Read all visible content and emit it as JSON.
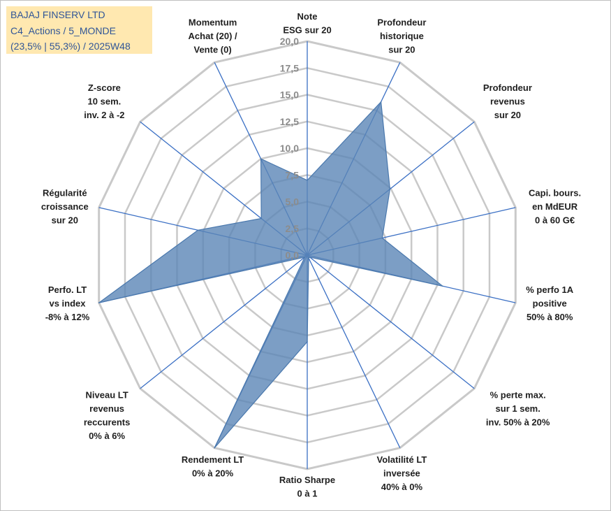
{
  "title_box": {
    "line1": "BAJAJ FINSERV LTD",
    "line2": "C4_Actions / 5_MONDE",
    "line3": "(23,5% | 55,3%) / 2025W48"
  },
  "chart_data": {
    "type": "radar",
    "rmin": 0,
    "rmax": 20,
    "ticks": [
      "0,0",
      "2,5",
      "5,0",
      "7,5",
      "10,0",
      "12,5",
      "15,0",
      "17,5",
      "20,0"
    ],
    "axes": [
      {
        "lines": [
          "Note",
          "ESG sur 20"
        ]
      },
      {
        "lines": [
          "Profondeur",
          "historique",
          "sur 20"
        ]
      },
      {
        "lines": [
          "Profondeur",
          "revenus",
          "sur 20"
        ]
      },
      {
        "lines": [
          "Capi. bours.",
          "en MdEUR",
          "0 à 60 G€"
        ]
      },
      {
        "lines": [
          "% perfo 1A",
          "positive",
          "50% à 80%"
        ]
      },
      {
        "lines": [
          "% perte max.",
          "sur 1 sem.",
          "inv. 50% à 20%"
        ]
      },
      {
        "lines": [
          "Volatilité LT",
          "inversée",
          "40% à 0%"
        ]
      },
      {
        "lines": [
          "Ratio Sharpe",
          "0 à 1"
        ]
      },
      {
        "lines": [
          "Rendement LT",
          "0% à 20%"
        ]
      },
      {
        "lines": [
          "Niveau LT",
          "revenus",
          "reccurents",
          "0% à 6%"
        ]
      },
      {
        "lines": [
          "Perfo. LT",
          "vs index",
          "-8% à 12%"
        ]
      },
      {
        "lines": [
          "Régularité",
          "croissance",
          "sur 20"
        ]
      },
      {
        "lines": [
          "Z-score",
          "10 sem.",
          "inv. 2 à -2"
        ]
      },
      {
        "lines": [
          "Momentum",
          "Achat (20) /",
          "Vente (0)"
        ]
      }
    ],
    "series": [
      {
        "name": "BAJAJ FINSERV LTD",
        "values": [
          7.0,
          15.9,
          9.9,
          7.2,
          13.0,
          0.3,
          0.3,
          8.1,
          20.0,
          0.3,
          20.0,
          10.5,
          5.5,
          10.0
        ]
      }
    ],
    "colors": {
      "fill": "#5b86b7",
      "fill_opacity": "0.8",
      "stroke": "#4a78ad",
      "spoke": "#3a6fc4",
      "grid": "#c9c9c9",
      "tick": "#8c8c8c"
    }
  }
}
